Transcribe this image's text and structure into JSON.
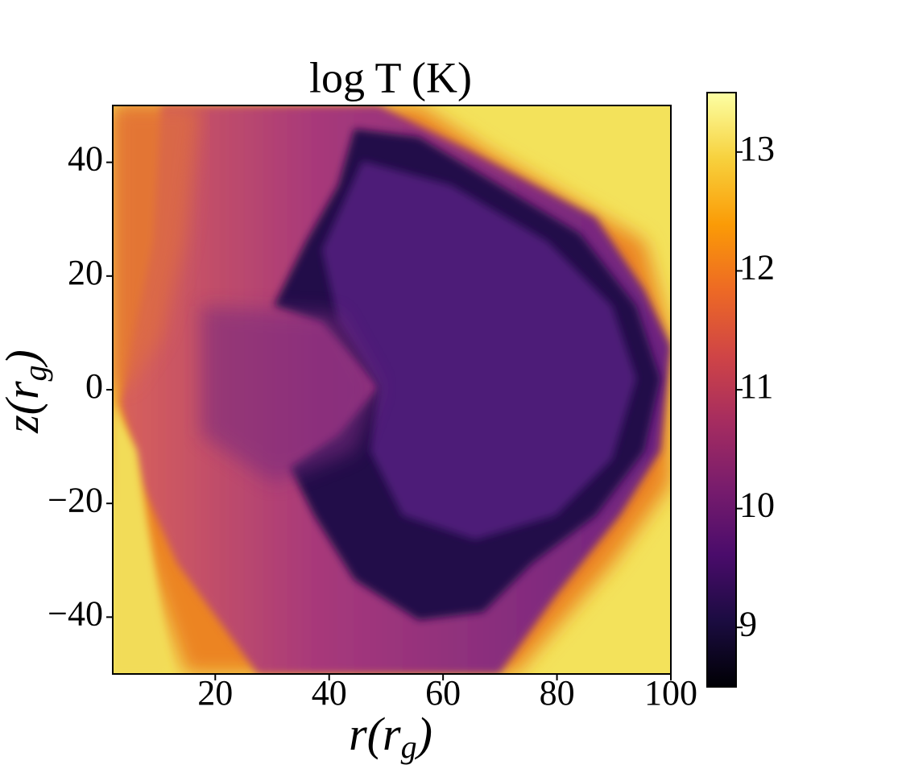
{
  "chart_data": {
    "type": "heatmap",
    "title": "log T (K)",
    "xlabel": [
      "r(r",
      "g",
      ")"
    ],
    "ylabel": [
      "z(r",
      "g",
      ")"
    ],
    "xlim": [
      2,
      100
    ],
    "xticks": [
      20,
      40,
      60,
      80,
      100
    ],
    "ylim": [
      -50,
      50
    ],
    "yticks": [
      {
        "value": -40,
        "label": "−40"
      },
      {
        "value": -20,
        "label": "−20"
      },
      0,
      20,
      40
    ],
    "colormap": "inferno",
    "colorbar_lim": [
      8.5,
      13.5
    ],
    "colorbar_ticks": [
      9,
      10,
      11,
      12,
      13
    ]
  }
}
